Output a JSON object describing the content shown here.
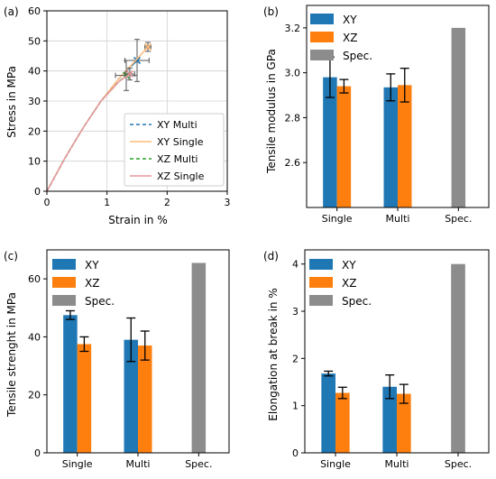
{
  "colors": {
    "xy": "#1f77b4",
    "xz": "#ff7f0e",
    "spec": "#8c8c8c",
    "err": "#000000"
  },
  "chart_data": [
    {
      "panel_label": "(a)",
      "type": "line",
      "xlabel": "Strain in %",
      "ylabel": "Stress in MPa",
      "xlim": [
        0,
        3
      ],
      "ylim": [
        0,
        60
      ],
      "xticks": [
        "0",
        "1",
        "2",
        "3"
      ],
      "yticks": [
        "0",
        "10",
        "20",
        "30",
        "40",
        "50",
        "60"
      ],
      "grid": true,
      "legend_position": "lower-right",
      "series": [
        {
          "name": "XY Multi",
          "color": "#1f77b4",
          "dash": "dashed",
          "x": [
            0,
            0.3,
            0.6,
            0.9,
            1.2,
            1.5
          ],
          "y": [
            0,
            11,
            21,
            30,
            37.5,
            43.5
          ],
          "end_marker": {
            "x": 1.5,
            "y": 43.5,
            "xerr": 0.2,
            "yerr": 7
          }
        },
        {
          "name": "XY Single",
          "color": "#ffbb78",
          "dash": "solid",
          "x": [
            0,
            0.3,
            0.6,
            0.9,
            1.2,
            1.5,
            1.68
          ],
          "y": [
            0,
            11,
            21,
            30,
            37.5,
            44,
            48
          ],
          "end_marker": {
            "x": 1.68,
            "y": 48,
            "xerr": 0.05,
            "yerr": 1.5
          }
        },
        {
          "name": "XZ Multi",
          "color": "#2ca02c",
          "dash": "dashed",
          "x": [
            0,
            0.3,
            0.6,
            0.9,
            1.2,
            1.32
          ],
          "y": [
            0,
            11,
            21,
            30,
            36.5,
            38.5
          ],
          "end_marker": {
            "x": 1.32,
            "y": 38.5,
            "xerr": 0.18,
            "yerr": 5
          }
        },
        {
          "name": "XZ Single",
          "color": "#e7969c",
          "dash": "solid",
          "x": [
            0,
            0.3,
            0.6,
            0.9,
            1.2,
            1.38
          ],
          "y": [
            0,
            11,
            21,
            30,
            36.5,
            39
          ],
          "end_marker": {
            "x": 1.38,
            "y": 39,
            "xerr": 0.08,
            "yerr": 2
          }
        }
      ]
    },
    {
      "panel_label": "(b)",
      "type": "bar",
      "ylabel": "Tensile modulus in GPa",
      "categories": [
        "Single",
        "Multi",
        "Spec."
      ],
      "ylim": [
        2.4,
        3.3
      ],
      "yticks": [
        "2.6",
        "2.8",
        "3.0",
        "3.2"
      ],
      "legend_position": "top-left",
      "series": [
        {
          "name": "XY",
          "color": "#1f77b4",
          "values": [
            2.98,
            2.935,
            null
          ],
          "errors": [
            0.09,
            0.06,
            null
          ]
        },
        {
          "name": "XZ",
          "color": "#ff7f0e",
          "values": [
            2.94,
            2.945,
            null
          ],
          "errors": [
            0.03,
            0.075,
            null
          ]
        },
        {
          "name": "Spec.",
          "color": "#8c8c8c",
          "values": [
            null,
            null,
            3.2
          ],
          "errors": [
            null,
            null,
            null
          ]
        }
      ]
    },
    {
      "panel_label": "(c)",
      "type": "bar",
      "ylabel": "Tensile strenght in MPa",
      "categories": [
        "Single",
        "Multi",
        "Spec."
      ],
      "ylim": [
        0,
        70
      ],
      "yticks": [
        "0",
        "20",
        "40",
        "60"
      ],
      "legend_position": "top-left",
      "series": [
        {
          "name": "XY",
          "color": "#1f77b4",
          "values": [
            47.5,
            39,
            null
          ],
          "errors": [
            1.5,
            7.5,
            null
          ]
        },
        {
          "name": "XZ",
          "color": "#ff7f0e",
          "values": [
            37.5,
            37,
            null
          ],
          "errors": [
            2.5,
            5,
            null
          ]
        },
        {
          "name": "Spec.",
          "color": "#8c8c8c",
          "values": [
            null,
            null,
            65.5
          ],
          "errors": [
            null,
            null,
            null
          ]
        }
      ]
    },
    {
      "panel_label": "(d)",
      "type": "bar",
      "ylabel": "Elongation at break in %",
      "categories": [
        "Single",
        "Multi",
        "Spec."
      ],
      "ylim": [
        0,
        4.3
      ],
      "yticks": [
        "0",
        "1",
        "2",
        "3",
        "4"
      ],
      "legend_position": "top-left",
      "series": [
        {
          "name": "XY",
          "color": "#1f77b4",
          "values": [
            1.68,
            1.4,
            null
          ],
          "errors": [
            0.05,
            0.25,
            null
          ]
        },
        {
          "name": "XZ",
          "color": "#ff7f0e",
          "values": [
            1.27,
            1.25,
            null
          ],
          "errors": [
            0.12,
            0.2,
            null
          ]
        },
        {
          "name": "Spec.",
          "color": "#8c8c8c",
          "values": [
            null,
            null,
            4.0
          ],
          "errors": [
            null,
            null,
            null
          ]
        }
      ]
    }
  ]
}
